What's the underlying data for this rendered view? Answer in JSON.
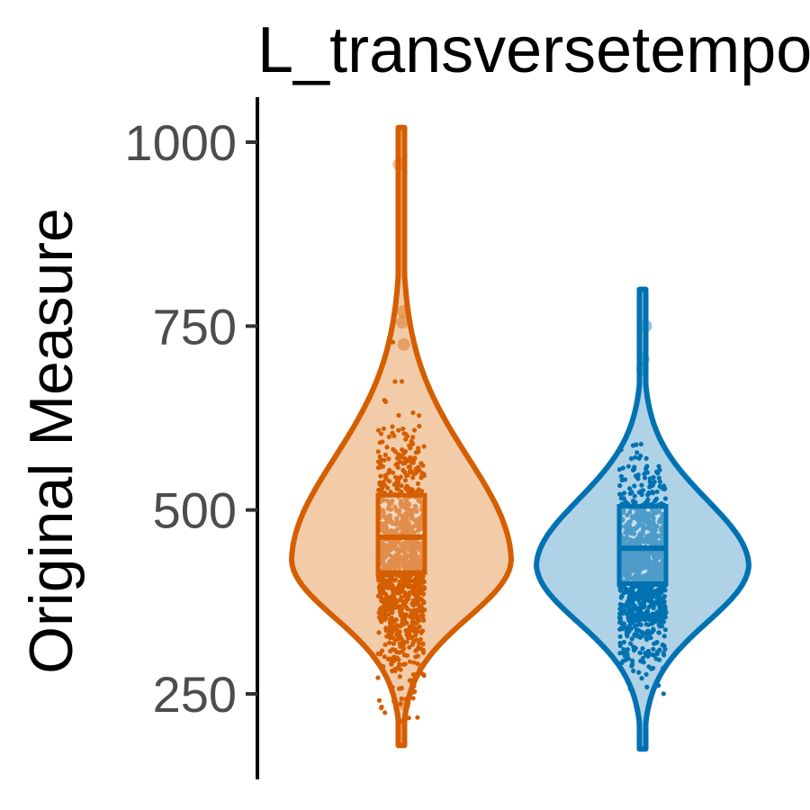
{
  "chart_data": {
    "type": "violin",
    "title": "L_transversetempo",
    "xlabel": "",
    "ylabel": "Original Measure",
    "ylim": [
      160,
      1060
    ],
    "yticks": [
      250,
      500,
      750,
      1000
    ],
    "ytick_labels": [
      "250",
      "500",
      "750",
      "1000"
    ],
    "grid": false,
    "legend": "none",
    "series": [
      {
        "color": "#D55E00",
        "fill": "#F2CBA9",
        "min": 180,
        "max": 1020,
        "q1": 415,
        "median": 463,
        "q3": 520,
        "mode": 432,
        "outliers": [
          970,
          770,
          755,
          725,
          236
        ]
      },
      {
        "color": "#0072B2",
        "fill": "#AFD2E6",
        "min": 175,
        "max": 800,
        "q1": 400,
        "median": 448,
        "q3": 505,
        "mode": 425,
        "outliers": [
          750,
          705,
          692
        ]
      }
    ]
  }
}
